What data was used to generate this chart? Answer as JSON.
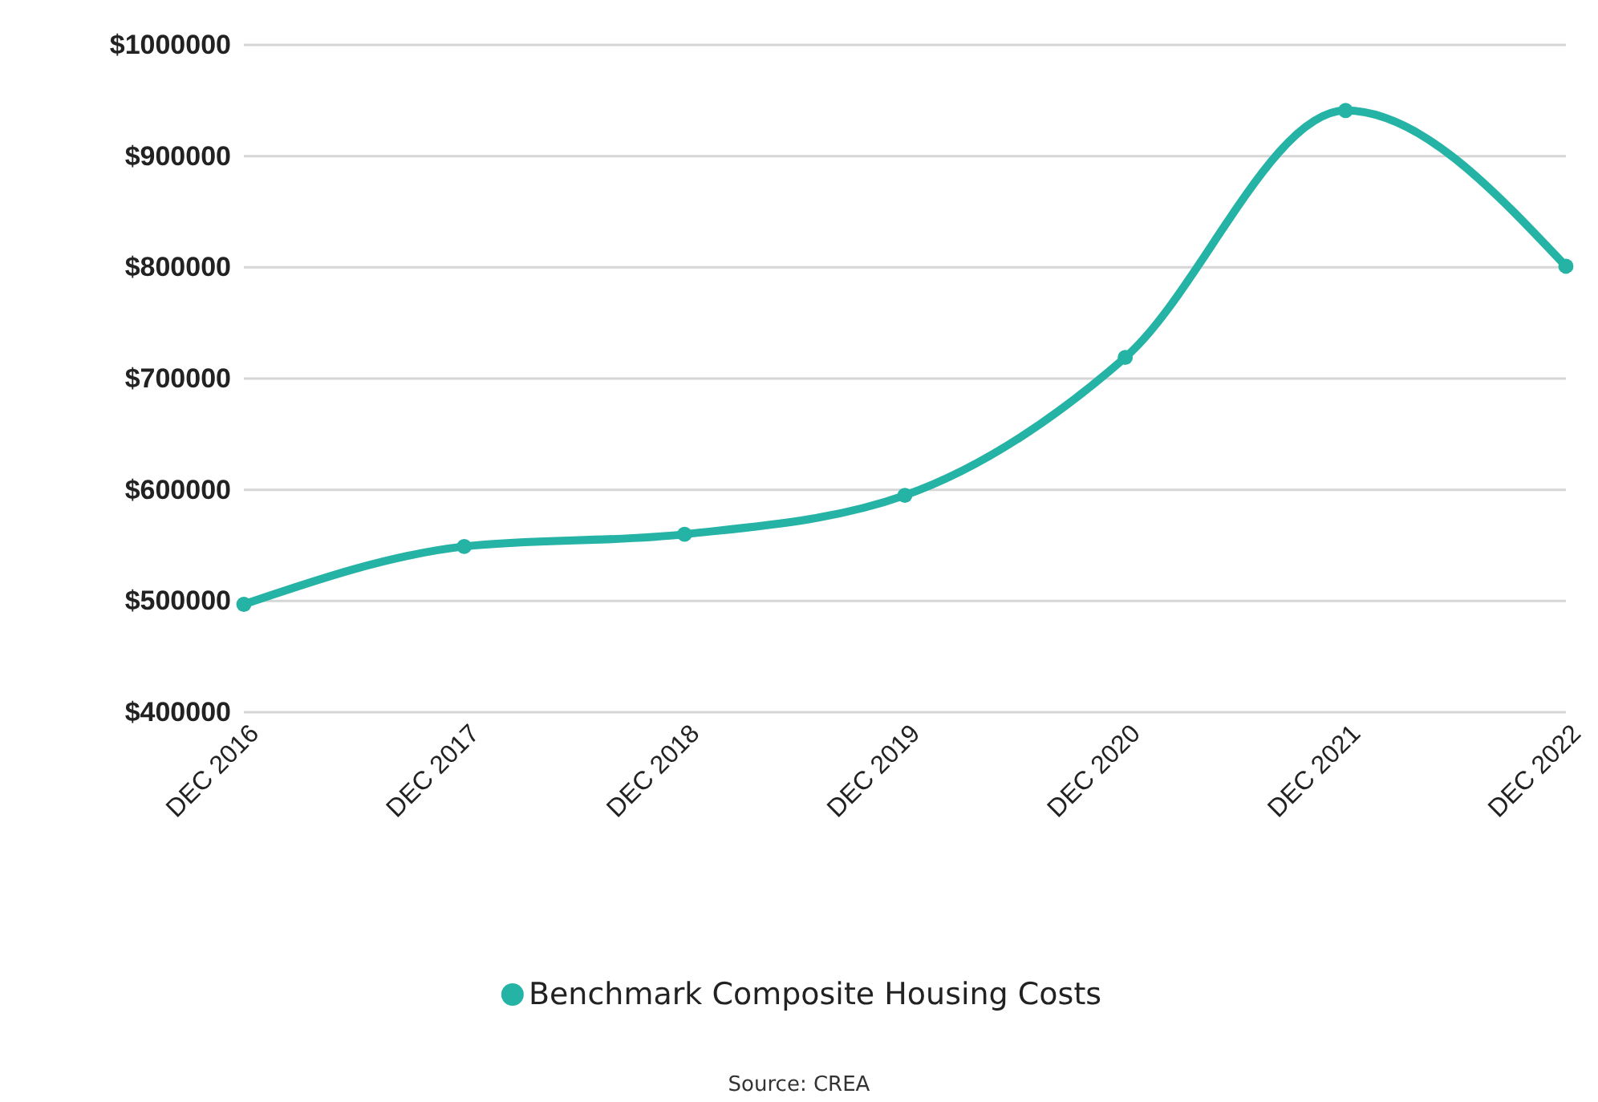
{
  "chart_data": {
    "type": "line",
    "categories": [
      "DEC 2016",
      "DEC 2017",
      "DEC 2018",
      "DEC 2019",
      "DEC 2020",
      "DEC 2021",
      "DEC 2022"
    ],
    "series": [
      {
        "name": "Benchmark Composite Housing Costs",
        "color": "#24b3a5",
        "values": [
          497000,
          549000,
          560000,
          595000,
          719000,
          941000,
          801000
        ]
      }
    ],
    "ylim": [
      400000,
      1000000
    ],
    "yticks": [
      {
        "value": 400000,
        "label": "$400000"
      },
      {
        "value": 500000,
        "label": "$500000"
      },
      {
        "value": 600000,
        "label": "$600000"
      },
      {
        "value": 700000,
        "label": "$700000"
      },
      {
        "value": 800000,
        "label": "$800000"
      },
      {
        "value": 900000,
        "label": "$900000"
      },
      {
        "value": 1000000,
        "label": "$1000000"
      }
    ],
    "grid": "y",
    "legend": "bottom",
    "marker": "circle",
    "line_style": "solid",
    "annotations": [
      "Source: CREA"
    ]
  }
}
